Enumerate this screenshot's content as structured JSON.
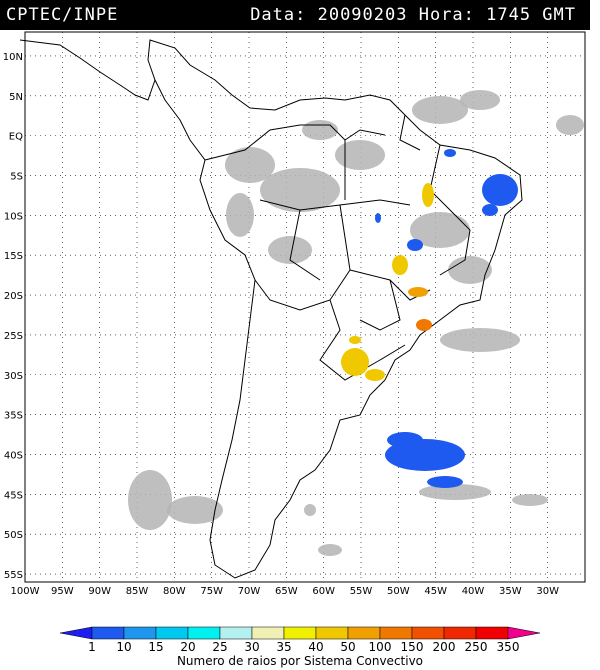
{
  "header": {
    "source": "CPTEC/INPE",
    "datetime": "Data: 20090203 Hora: 1745 GMT"
  },
  "map": {
    "lon_range": [
      -100,
      -25
    ],
    "lat_range": [
      -56,
      13
    ],
    "lat_labels": [
      "10N",
      "5N",
      "EQ",
      "5S",
      "10S",
      "15S",
      "20S",
      "25S",
      "30S",
      "35S",
      "40S",
      "45S",
      "50S",
      "55S"
    ],
    "lon_labels": [
      "100W",
      "95W",
      "90W",
      "85W",
      "80W",
      "75W",
      "70W",
      "65W",
      "60W",
      "55W",
      "50W",
      "45W",
      "40W",
      "35W",
      "30W"
    ],
    "colors": {
      "land_outline": "#000000",
      "cloud": "#b4b4b4",
      "graticule": "#000000"
    }
  },
  "colorbar": {
    "labels": [
      "1",
      "10",
      "15",
      "20",
      "25",
      "30",
      "35",
      "40",
      "50",
      "100",
      "150",
      "200",
      "250",
      "350"
    ],
    "colors": [
      "#1e1ef0",
      "#1e5af0",
      "#1e96f0",
      "#00c8f0",
      "#00f0f0",
      "#b4f0f0",
      "#f0f0b4",
      "#f0f000",
      "#f0c800",
      "#f0a000",
      "#f07800",
      "#f05000",
      "#f02800",
      "#f00000",
      "#f0008c"
    ],
    "caption": "Numero de raios por Sistema Convectivo"
  }
}
